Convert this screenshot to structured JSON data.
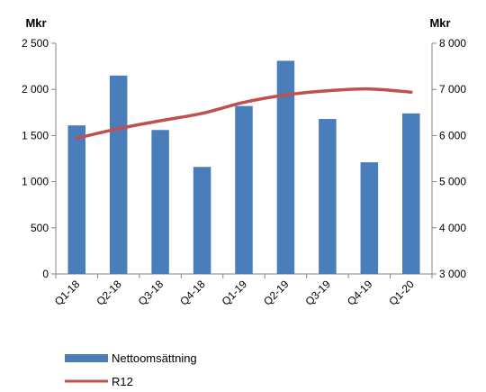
{
  "chart_data": {
    "type": "bar",
    "categories": [
      "Q1-18",
      "Q2-18",
      "Q3-18",
      "Q4-18",
      "Q1-19",
      "Q2-19",
      "Q3-19",
      "Q4-19",
      "Q1-20"
    ],
    "series": [
      {
        "name": "Nettoomsättning",
        "type": "bar",
        "axis": "left",
        "color": "#4a7ebb",
        "values": [
          1610,
          2150,
          1560,
          1160,
          1820,
          2310,
          1680,
          1210,
          1740
        ]
      },
      {
        "name": "R12",
        "type": "line",
        "axis": "right",
        "color": "#c0504d",
        "values": [
          5940,
          6150,
          6320,
          6480,
          6720,
          6880,
          6970,
          7010,
          6940
        ]
      }
    ],
    "y_left": {
      "unit": "Mkr",
      "ylim": [
        0,
        2500
      ],
      "ticks": [
        0,
        500,
        1000,
        1500,
        2000,
        2500
      ],
      "tick_labels": [
        "0",
        "500",
        "1 000",
        "1 500",
        "2 000",
        "2 500"
      ]
    },
    "y_right": {
      "unit": "Mkr",
      "ylim": [
        3000,
        8000
      ],
      "ticks": [
        3000,
        4000,
        5000,
        6000,
        7000,
        8000
      ],
      "tick_labels": [
        "3 000",
        "4 000",
        "5 000",
        "6 000",
        "7 000",
        "8 000"
      ]
    },
    "grid": false,
    "legend_position": "bottom-left"
  }
}
